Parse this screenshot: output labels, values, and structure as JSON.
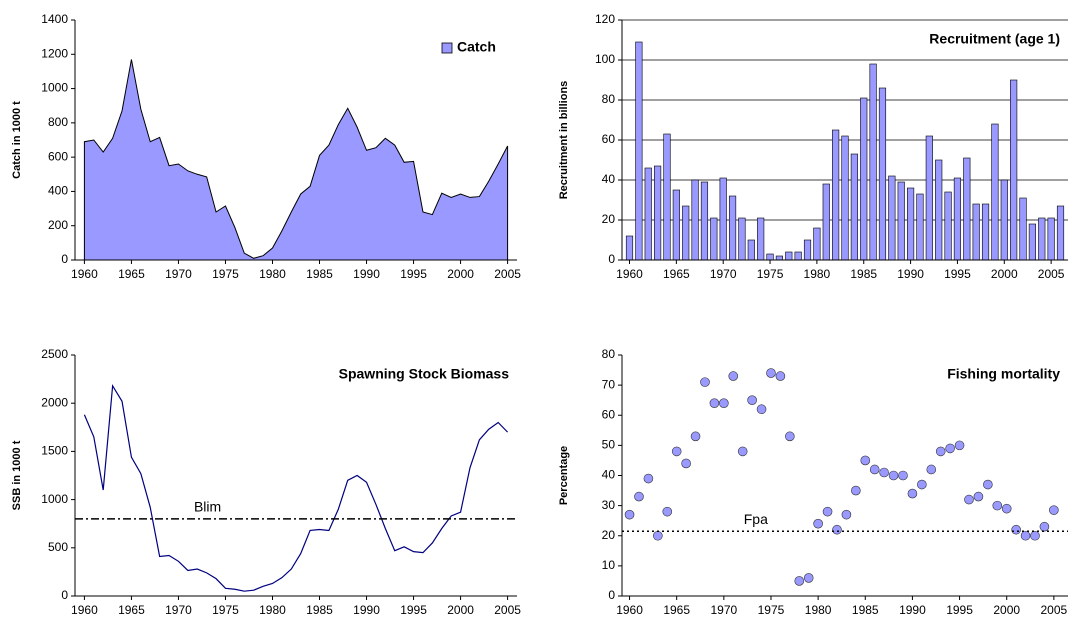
{
  "chart_data": [
    {
      "type": "area",
      "ylabel": "Catch in 1000 t",
      "x": [
        1960,
        1961,
        1962,
        1963,
        1964,
        1965,
        1966,
        1967,
        1968,
        1969,
        1970,
        1971,
        1972,
        1973,
        1974,
        1975,
        1976,
        1977,
        1978,
        1979,
        1980,
        1981,
        1982,
        1983,
        1984,
        1985,
        1986,
        1987,
        1988,
        1989,
        1990,
        1991,
        1992,
        1993,
        1994,
        1995,
        1996,
        1997,
        1998,
        1999,
        2000,
        2001,
        2002,
        2003,
        2004,
        2005
      ],
      "series": [
        {
          "name": "Catch",
          "color": "#9999ff",
          "values": [
            690,
            700,
            630,
            710,
            870,
            1170,
            880,
            690,
            715,
            550,
            560,
            520,
            500,
            485,
            280,
            315,
            190,
            40,
            10,
            25,
            70,
            170,
            280,
            385,
            430,
            610,
            670,
            790,
            885,
            775,
            640,
            655,
            710,
            670,
            570,
            575,
            280,
            265,
            390,
            365,
            385,
            365,
            370,
            460,
            560,
            665
          ]
        }
      ],
      "xlim": [
        1959,
        2006
      ],
      "xticks": [
        1960,
        1965,
        1970,
        1975,
        1980,
        1985,
        1990,
        1995,
        2000,
        2005
      ],
      "ylim": [
        0,
        1400
      ],
      "yticks": [
        0,
        200,
        400,
        600,
        800,
        1000,
        1200,
        1400
      ],
      "grid": false,
      "legend": "top-right"
    },
    {
      "type": "bar",
      "title": "Recruitment (age 1)",
      "ylabel": "Recruitment in billions",
      "x": [
        1960,
        1961,
        1962,
        1963,
        1964,
        1965,
        1966,
        1967,
        1968,
        1969,
        1970,
        1971,
        1972,
        1973,
        1974,
        1975,
        1976,
        1977,
        1978,
        1979,
        1980,
        1981,
        1982,
        1983,
        1984,
        1985,
        1986,
        1987,
        1988,
        1989,
        1990,
        1991,
        1992,
        1993,
        1994,
        1995,
        1996,
        1997,
        1998,
        1999,
        2000,
        2001,
        2002,
        2003,
        2004,
        2005,
        2006
      ],
      "values": [
        12,
        109,
        46,
        47,
        63,
        35,
        27,
        40,
        39,
        21,
        41,
        32,
        21,
        10,
        21,
        3,
        2,
        4,
        4,
        10,
        16,
        38,
        65,
        62,
        53,
        81,
        98,
        86,
        42,
        39,
        36,
        33,
        62,
        50,
        34,
        41,
        51,
        28,
        28,
        68,
        40,
        90,
        31,
        18,
        21,
        21,
        27
      ],
      "color": "#9999ff",
      "xlim": [
        1959.2,
        2006.8
      ],
      "xticks": [
        1960,
        1965,
        1970,
        1975,
        1980,
        1985,
        1990,
        1995,
        2000,
        2005
      ],
      "ylim": [
        0,
        120
      ],
      "yticks": [
        0,
        20,
        40,
        60,
        80,
        100,
        120
      ],
      "grid": true
    },
    {
      "type": "line",
      "title": "Spawning Stock Biomass",
      "ylabel": "SSB in 1000 t",
      "x": [
        1960,
        1961,
        1962,
        1963,
        1964,
        1965,
        1966,
        1967,
        1968,
        1969,
        1970,
        1971,
        1972,
        1973,
        1974,
        1975,
        1976,
        1977,
        1978,
        1979,
        1980,
        1981,
        1982,
        1983,
        1984,
        1985,
        1986,
        1987,
        1988,
        1989,
        1990,
        1991,
        1992,
        1993,
        1994,
        1995,
        1996,
        1997,
        1998,
        1999,
        2000,
        2001,
        2002,
        2003,
        2004,
        2005
      ],
      "values": [
        1880,
        1650,
        1100,
        2180,
        2020,
        1440,
        1270,
        920,
        410,
        420,
        360,
        265,
        280,
        240,
        180,
        80,
        70,
        50,
        60,
        100,
        130,
        190,
        280,
        440,
        680,
        690,
        680,
        900,
        1200,
        1250,
        1180,
        950,
        700,
        470,
        510,
        460,
        450,
        550,
        700,
        830,
        870,
        1330,
        1620,
        1730,
        1800,
        1700
      ],
      "color": "#000080",
      "reference_line": {
        "y": 800,
        "label": "Blim"
      },
      "xlim": [
        1959,
        2006
      ],
      "xticks": [
        1960,
        1965,
        1970,
        1975,
        1980,
        1985,
        1990,
        1995,
        2000,
        2005
      ],
      "ylim": [
        0,
        2500
      ],
      "yticks": [
        0,
        500,
        1000,
        1500,
        2000,
        2500
      ],
      "grid": false
    },
    {
      "type": "scatter",
      "title": "Fishing mortality",
      "ylabel": "Percentage",
      "x": [
        1960,
        1961,
        1962,
        1963,
        1964,
        1965,
        1966,
        1967,
        1968,
        1969,
        1970,
        1971,
        1972,
        1973,
        1974,
        1975,
        1976,
        1977,
        1978,
        1979,
        1980,
        1981,
        1982,
        1983,
        1984,
        1985,
        1986,
        1987,
        1988,
        1989,
        1990,
        1991,
        1992,
        1993,
        1994,
        1995,
        1996,
        1997,
        1998,
        1999,
        2000,
        2001,
        2002,
        2003,
        2004,
        2005
      ],
      "values": [
        27,
        33,
        39,
        20,
        28,
        48,
        44,
        53,
        71,
        64,
        64,
        73,
        48,
        65,
        62,
        74,
        73,
        53,
        5,
        6,
        24,
        28,
        22,
        27,
        35,
        45,
        42,
        41,
        40,
        40,
        34,
        37,
        42,
        48,
        49,
        50,
        32,
        33,
        37,
        30,
        29,
        22,
        20,
        20,
        23,
        28.5
      ],
      "color": "#9999ff",
      "reference_line": {
        "y": 21.5,
        "label": "Fpa"
      },
      "xlim": [
        1959.2,
        2006.5
      ],
      "xticks": [
        1960,
        1965,
        1970,
        1975,
        1980,
        1985,
        1990,
        1995,
        2000,
        2005
      ],
      "ylim": [
        0,
        80
      ],
      "yticks": [
        0,
        10,
        20,
        30,
        40,
        50,
        60,
        70,
        80
      ],
      "grid": false
    }
  ]
}
